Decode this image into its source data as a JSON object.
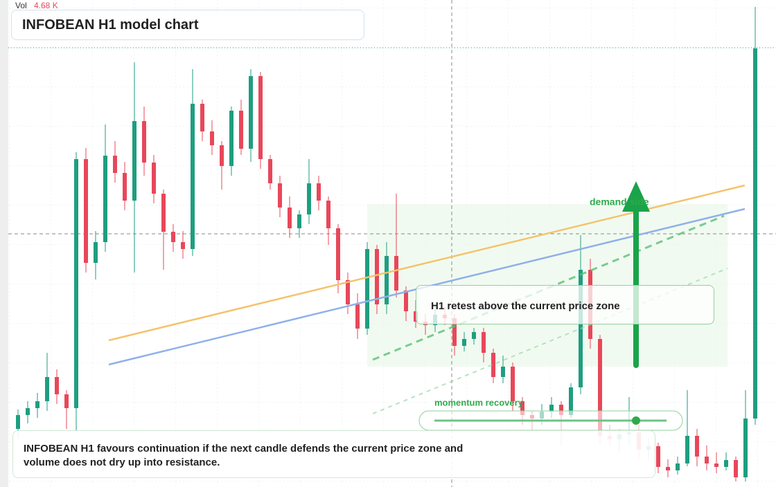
{
  "chart_data": {
    "type": "candlestick",
    "title": "INFOBEAN H1 model chart",
    "volume_label": "Vol",
    "volume_value": "4.68 K",
    "annotations": [
      "H1 retest above the current price zone",
      "demand side",
      "momentum recovery"
    ],
    "note": "INFOBEAN H1 favours continuation if the next candle defends the current price zone and volume does not dry up into resistance.",
    "up_color": "#1e9e80",
    "down_color": "#e8475a",
    "ylim": [
      0,
      704
    ],
    "ohlc": [
      [
        84,
        112,
        70,
        104
      ],
      [
        104,
        124,
        92,
        114
      ],
      [
        114,
        136,
        100,
        124
      ],
      [
        124,
        194,
        110,
        159
      ],
      [
        159,
        170,
        120,
        134
      ],
      [
        134,
        140,
        84,
        114
      ],
      [
        114,
        484,
        80,
        474
      ],
      [
        474,
        490,
        310,
        324
      ],
      [
        324,
        370,
        300,
        354
      ],
      [
        354,
        524,
        340,
        479
      ],
      [
        479,
        500,
        440,
        454
      ],
      [
        454,
        470,
        400,
        414
      ],
      [
        414,
        614,
        310,
        529
      ],
      [
        529,
        550,
        450,
        469
      ],
      [
        469,
        480,
        410,
        424
      ],
      [
        424,
        430,
        314,
        369
      ],
      [
        369,
        380,
        340,
        354
      ],
      [
        354,
        370,
        330,
        344
      ],
      [
        344,
        604,
        334,
        554
      ],
      [
        554,
        560,
        500,
        514
      ],
      [
        514,
        530,
        480,
        494
      ],
      [
        494,
        500,
        430,
        464
      ],
      [
        464,
        550,
        450,
        544
      ],
      [
        544,
        560,
        480,
        489
      ],
      [
        489,
        604,
        470,
        594
      ],
      [
        594,
        600,
        460,
        474
      ],
      [
        474,
        480,
        430,
        439
      ],
      [
        439,
        450,
        390,
        404
      ],
      [
        404,
        420,
        360,
        374
      ],
      [
        374,
        400,
        360,
        394
      ],
      [
        394,
        474,
        380,
        439
      ],
      [
        439,
        450,
        400,
        414
      ],
      [
        414,
        420,
        350,
        374
      ],
      [
        374,
        380,
        280,
        299
      ],
      [
        299,
        310,
        250,
        264
      ],
      [
        264,
        280,
        214,
        229
      ],
      [
        229,
        354,
        220,
        344
      ],
      [
        344,
        350,
        250,
        264
      ],
      [
        264,
        354,
        250,
        334
      ],
      [
        334,
        424,
        274,
        284
      ],
      [
        284,
        290,
        240,
        254
      ],
      [
        254,
        270,
        230,
        239
      ],
      [
        239,
        250,
        220,
        234
      ],
      [
        234,
        260,
        224,
        249
      ],
      [
        249,
        260,
        234,
        244
      ],
      [
        244,
        250,
        190,
        204
      ],
      [
        204,
        224,
        196,
        214
      ],
      [
        214,
        230,
        206,
        224
      ],
      [
        224,
        230,
        180,
        194
      ],
      [
        194,
        200,
        150,
        159
      ],
      [
        159,
        190,
        150,
        174
      ],
      [
        174,
        180,
        110,
        124
      ],
      [
        124,
        130,
        90,
        104
      ],
      [
        104,
        110,
        80,
        99
      ],
      [
        99,
        120,
        90,
        109
      ],
      [
        109,
        130,
        100,
        119
      ],
      [
        119,
        124,
        60,
        104
      ],
      [
        104,
        150,
        100,
        144
      ],
      [
        144,
        364,
        134,
        314
      ],
      [
        314,
        330,
        200,
        214
      ],
      [
        214,
        220,
        60,
        74
      ],
      [
        74,
        90,
        60,
        69
      ],
      [
        69,
        84,
        50,
        76
      ],
      [
        76,
        130,
        60,
        79
      ],
      [
        79,
        90,
        40,
        54
      ],
      [
        54,
        70,
        40,
        59
      ],
      [
        59,
        64,
        20,
        29
      ],
      [
        29,
        40,
        14,
        24
      ],
      [
        24,
        44,
        18,
        34
      ],
      [
        34,
        140,
        30,
        74
      ],
      [
        74,
        84,
        30,
        44
      ],
      [
        44,
        60,
        24,
        34
      ],
      [
        34,
        50,
        20,
        29
      ],
      [
        29,
        50,
        24,
        39
      ],
      [
        39,
        44,
        8,
        14
      ],
      [
        14,
        140,
        8,
        99
      ],
      [
        99,
        694,
        90,
        634
      ]
    ]
  }
}
